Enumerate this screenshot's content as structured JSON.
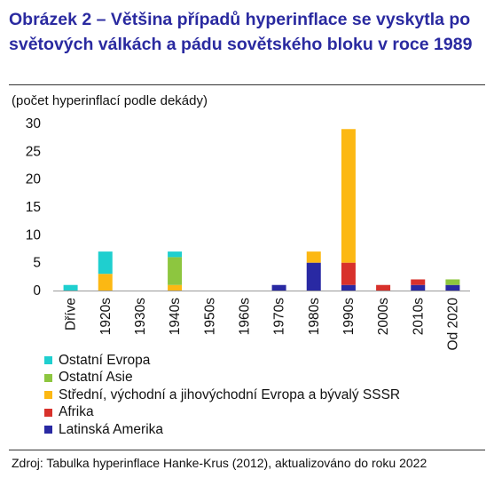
{
  "title": "Obrázek 2 – Většina případů hyperinflace se vyskytla po světových válkách a pádu sovětského bloku v roce 1989",
  "source": "Zdroj: Tabulka hyperinflace Hanke-Krus (2012), aktualizováno do roku 2022",
  "chart_data": {
    "type": "bar",
    "stacked": true,
    "title": "Obrázek 2 – Většina případů hyperinflace se vyskytla po světových válkách a pádu sovětského bloku v roce 1989",
    "subtitle": "(počet hyperinflací podle dekády)",
    "xlabel": "",
    "ylabel": "",
    "ylim": [
      0,
      30
    ],
    "yticks": [
      0,
      5,
      10,
      15,
      20,
      25,
      30
    ],
    "grid": false,
    "legend_position": "bottom-left",
    "categories": [
      "Dříve",
      "1920s",
      "1930s",
      "1940s",
      "1950s",
      "1960s",
      "1970s",
      "1980s",
      "1990s",
      "2000s",
      "2010s",
      "Od 2020"
    ],
    "series": [
      {
        "name": "Latinská Amerika",
        "color": "#2929a3",
        "values": [
          0,
          0,
          0,
          0,
          0,
          0,
          1,
          5,
          1,
          0,
          1,
          1
        ]
      },
      {
        "name": "Afrika",
        "color": "#d8312b",
        "values": [
          0,
          0,
          0,
          0,
          0,
          0,
          0,
          0,
          4,
          1,
          1,
          0
        ]
      },
      {
        "name": "Střední, východní a jihovýchodní Evropa a bývalý SSSR",
        "color": "#fcb813",
        "values": [
          0,
          3,
          0,
          1,
          0,
          0,
          0,
          2,
          24,
          0,
          0,
          0
        ]
      },
      {
        "name": "Ostatní Asie",
        "color": "#8dc63f",
        "values": [
          0,
          0,
          0,
          5,
          0,
          0,
          0,
          0,
          0,
          0,
          0,
          1
        ]
      },
      {
        "name": "Ostatní Evropa",
        "color": "#1fcfcf",
        "values": [
          1,
          4,
          0,
          1,
          0,
          0,
          0,
          0,
          0,
          0,
          0,
          0
        ]
      }
    ],
    "legend_order": [
      "Ostatní Evropa",
      "Ostatní Asie",
      "Střední, východní a jihovýchodní Evropa a bývalý SSSR",
      "Afrika",
      "Latinská Amerika"
    ]
  }
}
